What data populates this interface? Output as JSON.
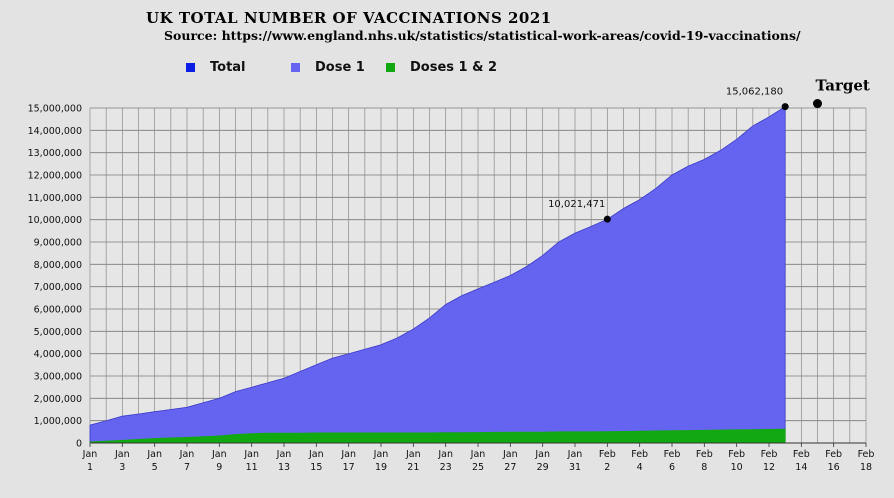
{
  "header": {
    "title": "UK  TOTAL NUMBER OF VACCINATIONS  2021",
    "source": "Source: https://www.england.nhs.uk/statistics/statistical-work-areas/covid-19-vaccinations/"
  },
  "legend": [
    {
      "label": "Total",
      "color": "#0a1ee6"
    },
    {
      "label": "Dose 1",
      "color": "#6464f0"
    },
    {
      "label": "Doses 1 & 2",
      "color": "#12a812"
    }
  ],
  "chart_data": {
    "type": "area",
    "title": "UK  TOTAL NUMBER OF VACCINATIONS  2021",
    "ylim": [
      0,
      15000000
    ],
    "yticks": [
      0,
      1000000,
      2000000,
      3000000,
      4000000,
      5000000,
      6000000,
      7000000,
      8000000,
      9000000,
      10000000,
      11000000,
      12000000,
      13000000,
      14000000,
      15000000
    ],
    "ytick_labels": [
      "0",
      "1,000,000",
      "2,000,000",
      "3,000,000",
      "4,000,000",
      "5,000,000",
      "6,000,000",
      "7,000,000",
      "8,000,000",
      "9,000,000",
      "10,000,000",
      "11,000,000",
      "12,000,000",
      "13,000,000",
      "14,000,000",
      "15,000,000"
    ],
    "xlim": [
      1,
      49
    ],
    "xticks": [
      {
        "day": 1,
        "month": "Jan",
        "date": "1"
      },
      {
        "day": 3,
        "month": "Jan",
        "date": "3"
      },
      {
        "day": 5,
        "month": "Jan",
        "date": "5"
      },
      {
        "day": 7,
        "month": "Jan",
        "date": "7"
      },
      {
        "day": 9,
        "month": "Jan",
        "date": "9"
      },
      {
        "day": 11,
        "month": "Jan",
        "date": "11"
      },
      {
        "day": 13,
        "month": "Jan",
        "date": "13"
      },
      {
        "day": 15,
        "month": "Jan",
        "date": "15"
      },
      {
        "day": 17,
        "month": "Jan",
        "date": "17"
      },
      {
        "day": 19,
        "month": "Jan",
        "date": "19"
      },
      {
        "day": 21,
        "month": "Jan",
        "date": "21"
      },
      {
        "day": 23,
        "month": "Jan",
        "date": "23"
      },
      {
        "day": 25,
        "month": "Jan",
        "date": "25"
      },
      {
        "day": 27,
        "month": "Jan",
        "date": "27"
      },
      {
        "day": 29,
        "month": "Jan",
        "date": "29"
      },
      {
        "day": 31,
        "month": "Jan",
        "date": "31"
      },
      {
        "day": 33,
        "month": "Feb",
        "date": "2"
      },
      {
        "day": 35,
        "month": "Feb",
        "date": "4"
      },
      {
        "day": 37,
        "month": "Feb",
        "date": "6"
      },
      {
        "day": 39,
        "month": "Feb",
        "date": "8"
      },
      {
        "day": 41,
        "month": "Feb",
        "date": "10"
      },
      {
        "day": 43,
        "month": "Feb",
        "date": "12"
      },
      {
        "day": 45,
        "month": "Feb",
        "date": "14"
      },
      {
        "day": 47,
        "month": "Feb",
        "date": "16"
      },
      {
        "day": 49,
        "month": "Feb",
        "date": "18"
      }
    ],
    "grid": true,
    "series": [
      {
        "name": "Dose 1",
        "color": "#6464f0",
        "x": [
          1,
          2,
          3,
          4,
          5,
          6,
          7,
          8,
          9,
          10,
          11,
          12,
          13,
          14,
          15,
          16,
          17,
          18,
          19,
          20,
          21,
          22,
          23,
          24,
          25,
          26,
          27,
          28,
          29,
          30,
          31,
          32,
          33,
          34,
          35,
          36,
          37,
          38,
          39,
          40,
          41,
          42,
          43,
          44
        ],
        "values": [
          800000,
          1000000,
          1200000,
          1300000,
          1400000,
          1500000,
          1600000,
          1800000,
          2000000,
          2300000,
          2500000,
          2700000,
          2900000,
          3200000,
          3500000,
          3800000,
          4000000,
          4200000,
          4400000,
          4700000,
          5100000,
          5600000,
          6200000,
          6600000,
          6900000,
          7200000,
          7500000,
          7900000,
          8400000,
          9000000,
          9400000,
          9700000,
          10021471,
          10500000,
          10900000,
          11400000,
          12000000,
          12400000,
          12700000,
          13100000,
          13600000,
          14200000,
          14600000,
          15062180
        ]
      },
      {
        "name": "Doses 1 & 2",
        "color": "#12a812",
        "x": [
          1,
          2,
          3,
          4,
          5,
          6,
          7,
          8,
          9,
          10,
          11,
          12,
          13,
          14,
          15,
          16,
          17,
          18,
          19,
          20,
          21,
          22,
          23,
          24,
          25,
          26,
          27,
          28,
          29,
          30,
          31,
          32,
          33,
          34,
          35,
          36,
          37,
          38,
          39,
          40,
          41,
          42,
          43,
          44
        ],
        "values": [
          50000,
          80000,
          120000,
          160000,
          200000,
          230000,
          250000,
          280000,
          320000,
          380000,
          420000,
          440000,
          440000,
          440000,
          450000,
          450000,
          450000,
          450000,
          450000,
          450000,
          450000,
          450000,
          460000,
          460000,
          470000,
          480000,
          490000,
          490000,
          490000,
          500000,
          500000,
          500000,
          510000,
          520000,
          530000,
          540000,
          550000,
          560000,
          570000,
          580000,
          590000,
          600000,
          610000,
          620000
        ]
      }
    ],
    "annotations": [
      {
        "label": "10,021,471",
        "x": 33,
        "y": 10021471
      },
      {
        "label": "15,062,180",
        "x": 44,
        "y": 15062180
      },
      {
        "label": "Target",
        "x": 46,
        "y": 15000000
      }
    ]
  }
}
